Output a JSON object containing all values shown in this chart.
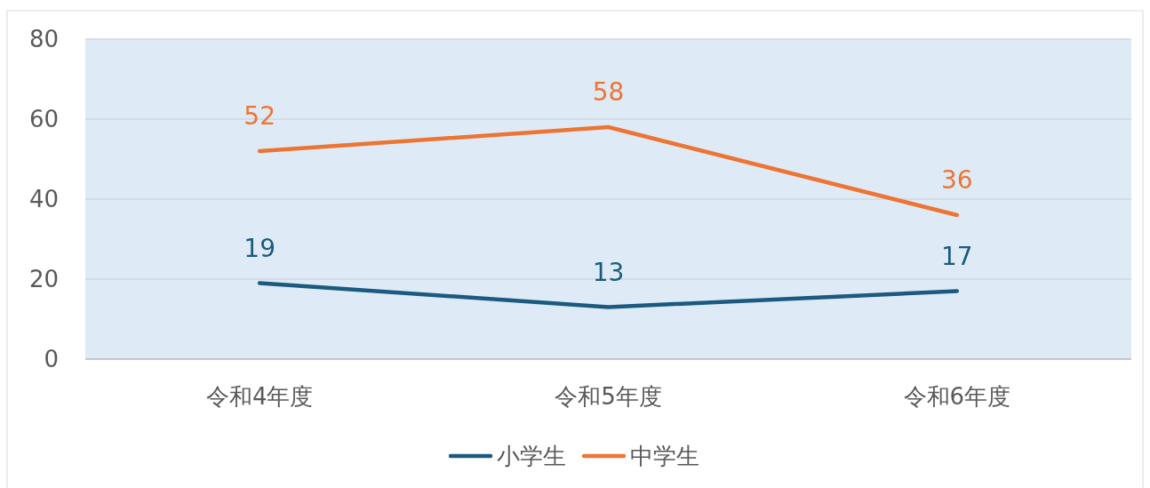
{
  "chart_data": {
    "type": "line",
    "categories": [
      "令和4年度",
      "令和5年度",
      "令和6年度"
    ],
    "series": [
      {
        "name": "小学生",
        "color": "#1b5a7e",
        "values": [
          19,
          13,
          17
        ]
      },
      {
        "name": "中学生",
        "color": "#ed7432",
        "values": [
          52,
          58,
          36
        ]
      }
    ],
    "ylim": [
      0,
      80
    ],
    "yticks": [
      0,
      20,
      40,
      60,
      80
    ],
    "grid": "y",
    "legend": "bottom",
    "data_labels": true,
    "marker": "none",
    "line_style": "solid"
  }
}
